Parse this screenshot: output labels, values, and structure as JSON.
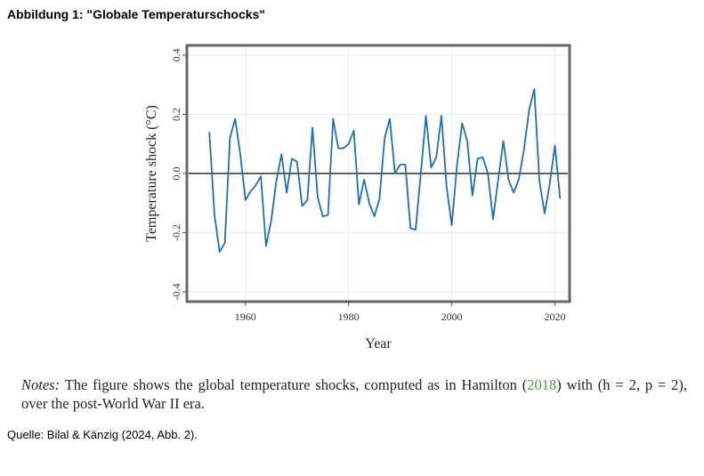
{
  "figure_title": "Abbildung 1: \"Globale Temperaturschocks\"",
  "notes": {
    "label": "Notes:",
    "text_before": " The figure shows the global temperature shocks, computed as in Hamilton (",
    "citation_year": "2018",
    "text_after": ") with (h = 2, p = 2), over the post-World War II era.",
    "citation_color": "#4a9a3c"
  },
  "source": "Quelle: Bilal & Känzig (2024, Abb. 2).",
  "chart_data": {
    "type": "line",
    "xlabel": "Year",
    "ylabel": "Temperature shock (°C)",
    "xlim": [
      1949,
      2022.5
    ],
    "ylim": [
      -0.43,
      0.43
    ],
    "xticks": [
      1960,
      1980,
      2000,
      2020
    ],
    "yticks": [
      -0.4,
      -0.2,
      0.0,
      0.2,
      0.4
    ],
    "ytick_labels": [
      "-0.4",
      "-0.2",
      "0.0",
      "0.2",
      "0.4"
    ],
    "grid": true,
    "zero_line": true,
    "line_color": "#1f6fb5",
    "series": [
      {
        "x": [
          1953,
          1954,
          1955,
          1956,
          1957,
          1958,
          1959,
          1960,
          1961,
          1962,
          1963,
          1964,
          1965,
          1966,
          1967,
          1968,
          1969,
          1970,
          1971,
          1972,
          1973,
          1974,
          1975,
          1976,
          1977,
          1978,
          1979,
          1980,
          1981,
          1982,
          1983,
          1984,
          1985,
          1986,
          1987,
          1988,
          1989,
          1990,
          1991,
          1992,
          1993,
          1994,
          1995,
          1996,
          1997,
          1998,
          1999,
          2000,
          2001,
          2002,
          2003,
          2004,
          2005,
          2006,
          2007,
          2008,
          2009,
          2010,
          2011,
          2012,
          2013,
          2014,
          2015,
          2016,
          2017,
          2018,
          2019,
          2020,
          2021
        ],
        "y": [
          0.14,
          -0.14,
          -0.265,
          -0.235,
          0.12,
          0.185,
          0.065,
          -0.09,
          -0.06,
          -0.04,
          -0.01,
          -0.245,
          -0.16,
          -0.025,
          0.065,
          -0.065,
          0.05,
          0.04,
          -0.11,
          -0.09,
          0.155,
          -0.08,
          -0.145,
          -0.14,
          0.185,
          0.085,
          0.085,
          0.1,
          0.145,
          -0.105,
          -0.02,
          -0.1,
          -0.145,
          -0.085,
          0.12,
          0.185,
          0.0,
          0.03,
          0.03,
          -0.185,
          -0.19,
          0.0,
          0.195,
          0.02,
          0.055,
          0.195,
          -0.045,
          -0.175,
          0.025,
          0.17,
          0.11,
          -0.075,
          0.05,
          0.055,
          0.0,
          -0.155,
          -0.02,
          0.11,
          -0.02,
          -0.065,
          -0.02,
          0.08,
          0.215,
          0.285,
          -0.025,
          -0.135,
          -0.035,
          0.095,
          -0.085
        ]
      }
    ]
  }
}
